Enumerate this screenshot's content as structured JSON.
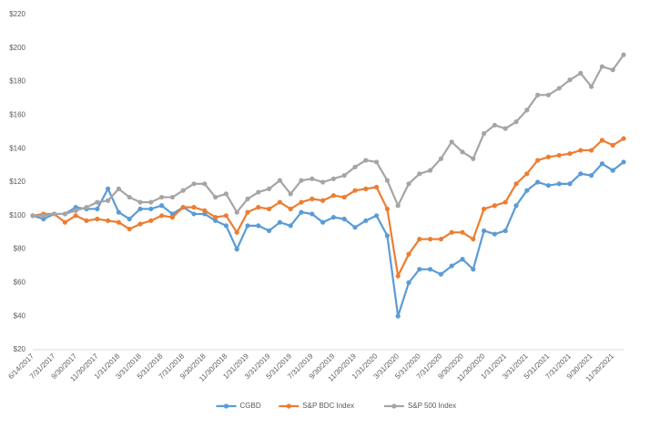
{
  "chart_data": {
    "type": "line",
    "categories": [
      "6/14/2017",
      null,
      "7/31/2017",
      null,
      "9/30/2017",
      null,
      "11/30/2017",
      null,
      "1/31/2018",
      null,
      "3/31/2018",
      null,
      "5/31/2018",
      null,
      "7/31/2018",
      null,
      "9/30/2018",
      null,
      "11/30/2018",
      null,
      "1/31/2019",
      null,
      "3/31/2019",
      null,
      "5/31/2019",
      null,
      "7/31/2019",
      null,
      "9/30/2019",
      null,
      "11/30/2019",
      null,
      "1/31/2020",
      null,
      "3/31/2020",
      null,
      "5/31/2020",
      null,
      "7/31/2020",
      null,
      "9/30/2020",
      null,
      "11/30/2020",
      null,
      "1/31/2021",
      null,
      "3/31/2021",
      null,
      "5/31/2021",
      null,
      "7/31/2021",
      null,
      "9/30/2021",
      null,
      "11/30/2021",
      null
    ],
    "series": [
      {
        "name": "CGBD",
        "color": "#5b9bd5",
        "values": [
          100,
          98,
          101,
          101,
          105,
          104,
          104,
          116,
          102,
          98,
          104,
          104,
          106,
          101,
          105,
          101,
          101,
          97,
          94,
          80,
          94,
          94,
          91,
          96,
          94,
          102,
          101,
          96,
          99,
          98,
          93,
          97,
          100,
          88,
          40,
          60,
          68,
          68,
          65,
          70,
          74,
          68,
          91,
          89,
          91,
          106,
          115,
          120,
          118,
          119,
          119,
          125,
          124,
          131,
          127,
          132
        ]
      },
      {
        "name": "S&P BDC Index",
        "color": "#ed7d31",
        "values": [
          100,
          101,
          101,
          96,
          100,
          97,
          98,
          97,
          96,
          92,
          95,
          97,
          100,
          99,
          105,
          105,
          103,
          99,
          100,
          90,
          102,
          105,
          104,
          108,
          104,
          108,
          110,
          109,
          112,
          111,
          115,
          116,
          117,
          104,
          64,
          77,
          86,
          86,
          86,
          90,
          90,
          86,
          104,
          106,
          108,
          119,
          125,
          133,
          135,
          136,
          137,
          139,
          139,
          145,
          142,
          146
        ]
      },
      {
        "name": "S&P 500 Index",
        "color": "#a5a5a5",
        "values": [
          100,
          100,
          101,
          101,
          103,
          105,
          108,
          109,
          116,
          111,
          108,
          108,
          111,
          111,
          115,
          119,
          119,
          111,
          113,
          102,
          110,
          114,
          116,
          121,
          113,
          121,
          122,
          120,
          122,
          124,
          129,
          133,
          132,
          121,
          106,
          119,
          125,
          127,
          134,
          144,
          138,
          134,
          149,
          154,
          152,
          156,
          163,
          172,
          172,
          176,
          181,
          185,
          177,
          189,
          187,
          196
        ]
      }
    ],
    "ylim": [
      20,
      220
    ],
    "yticks": [
      {
        "value": 20,
        "label": "$20"
      },
      {
        "value": 40,
        "label": "$40"
      },
      {
        "value": 60,
        "label": "$60"
      },
      {
        "value": 80,
        "label": "$80"
      },
      {
        "value": 100,
        "label": "$100"
      },
      {
        "value": 120,
        "label": "$120"
      },
      {
        "value": 140,
        "label": "$140"
      },
      {
        "value": 160,
        "label": "$160"
      },
      {
        "value": 180,
        "label": "$180"
      },
      {
        "value": 200,
        "label": "$200"
      },
      {
        "value": 220,
        "label": "$220"
      }
    ],
    "grid": false,
    "legend": "bottom"
  }
}
